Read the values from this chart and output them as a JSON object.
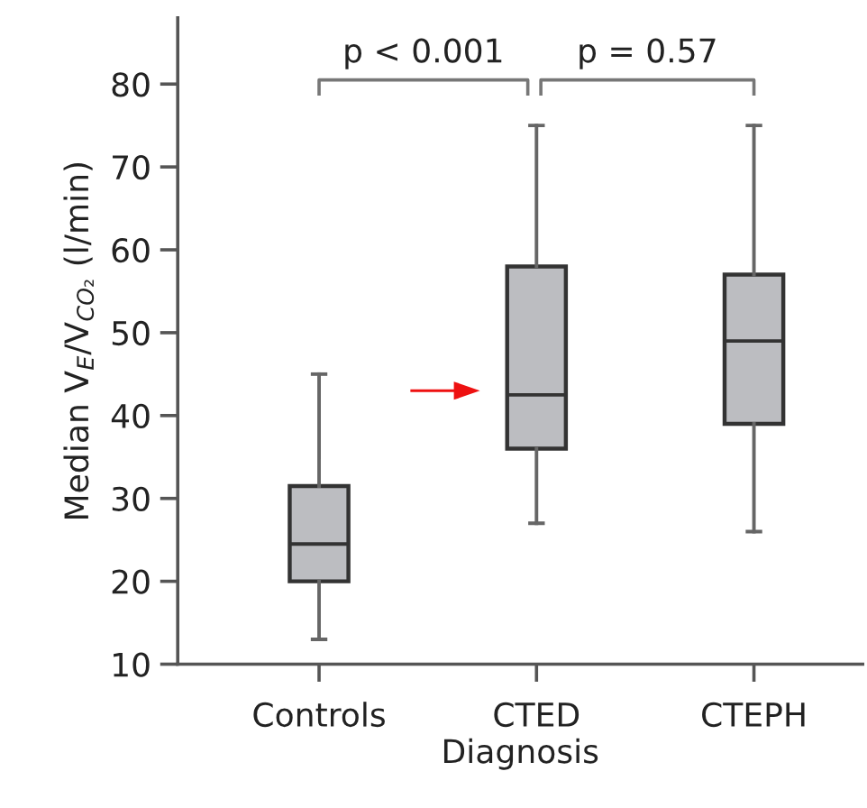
{
  "chart_data": {
    "type": "box",
    "xlabel": "Diagnosis",
    "ylabel": "Median V$_{E}$/V$_{CO₂}$ (l/min)",
    "categories": [
      "Controls",
      "CTED",
      "CTEPH"
    ],
    "color": "#bcbdc1",
    "ylim": [
      10,
      88
    ],
    "yticks": [
      10,
      20,
      30,
      40,
      50,
      60,
      70,
      80
    ],
    "grid": false,
    "legend": false,
    "boxes": [
      {
        "low": 13,
        "q1": 20,
        "median": 24.5,
        "q3": 31.5,
        "high": 45
      },
      {
        "low": 27,
        "q1": 36,
        "median": 42.5,
        "q3": 58,
        "high": 75
      },
      {
        "low": 26,
        "q1": 39,
        "median": 49,
        "q3": 57,
        "high": 75
      }
    ],
    "annotations": [
      "p < 0.001",
      "p = 0.57"
    ]
  }
}
